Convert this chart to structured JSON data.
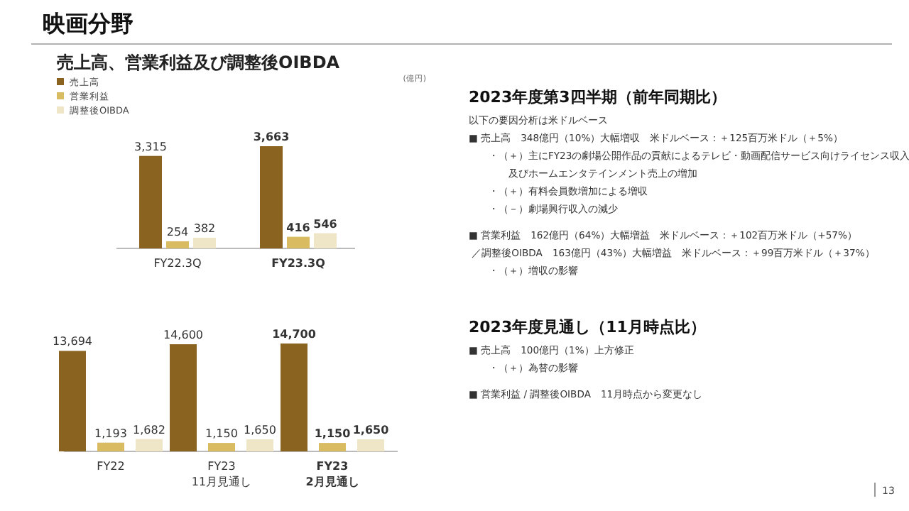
{
  "chart_data": [
    {
      "type": "bar",
      "title": "売上高、営業利益及び調整後OIBDA",
      "categories": [
        "FY22.3Q",
        "FY23.3Q"
      ],
      "series": [
        {
          "name": "売上高",
          "color": "#8b6321",
          "values": [
            3315,
            3663
          ],
          "value_labels": [
            "3,315",
            "3,663"
          ]
        },
        {
          "name": "営業利益",
          "color": "#d9bb62",
          "values": [
            254,
            416
          ],
          "value_labels": [
            "254",
            "416"
          ]
        },
        {
          "name": "調整後OIBDA",
          "color": "#efe6c8",
          "values": [
            382,
            546
          ],
          "value_labels": [
            "382",
            "546"
          ]
        }
      ],
      "legend": "top left",
      "annotations": [
        "(億円)"
      ]
    },
    {
      "type": "bar",
      "categories": [
        "FY22",
        "FY23\n11月見通し",
        "FY23\n2月見通し"
      ],
      "series": [
        {
          "color": "#8b6321",
          "values": [
            13694,
            14600,
            14700
          ],
          "value_labels": [
            "13,694",
            "14,600",
            "14,700"
          ]
        },
        {
          "color": "#d9bb62",
          "values": [
            1193,
            1150,
            1150
          ],
          "value_labels": [
            "1,193",
            "1,150",
            "1,150"
          ]
        },
        {
          "color": "#efe6c8",
          "values": [
            1682,
            1650,
            1650
          ],
          "value_labels": [
            "1,682",
            "1,650",
            "1,650"
          ]
        }
      ]
    },
    {
      "type": "other",
      "title": "2023年度第3四半期（前年同期比）",
      "annotations": [
        "以下の要因分析は米ドルベース",
        "■ 売上高　348億円（10%）大幅増収　米ドルベース：＋125百万米ドル（＋5%）",
        "　　・（＋）主にFY23の劇場公開作品の貢献によるテレビ・動画配信サービス向けライセンス収入",
        "　　　　及びホームエンタテインメント売上の増加",
        "　　・（＋）有料会員数増加による増収",
        "　　・（－）劇場興行収入の減少"
      ]
    },
    {
      "type": "other",
      "annotations": [
        "■ 営業利益　162億円（64%）大幅増益　米ドルベース：＋102百万米ドル（+57%）",
        " ／調整後OIBDA　163億円（43%）大幅増益　米ドルベース：＋99百万米ドル（＋37%）",
        "　　・（＋）増収の影響"
      ]
    },
    {
      "type": "other",
      "title": "2023年度見通し（11月時点比）",
      "annotations": [
        "■ 売上高　100億円（1%）上方修正",
        "　　・（＋）為替の影響"
      ]
    },
    {
      "type": "other",
      "annotations": [
        "■ 営業利益 / 調整後OIBDA　11月時点から変更なし"
      ]
    },
    {
      "type": "other",
      "title": "映画分野",
      "annotations": [
        "13"
      ]
    }
  ]
}
